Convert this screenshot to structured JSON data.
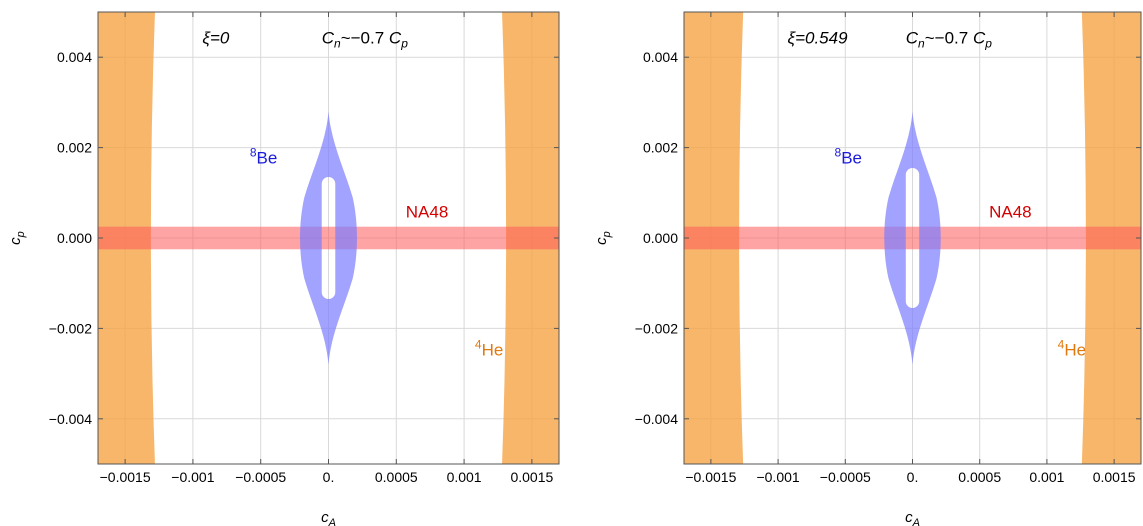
{
  "chart_data": [
    {
      "type": "region",
      "xlabel": "c",
      "xlabel_sub": "A",
      "ylabel": "c",
      "ylabel_sub": "p",
      "xlim": [
        -0.0017,
        0.0017
      ],
      "ylim": [
        -0.005,
        0.005
      ],
      "xticks": [
        {
          "v": -0.0015,
          "label": "−0.0015"
        },
        {
          "v": -0.001,
          "label": "−0.001"
        },
        {
          "v": -0.0005,
          "label": "−0.0005"
        },
        {
          "v": 0,
          "label": "0."
        },
        {
          "v": 0.0005,
          "label": "0.0005"
        },
        {
          "v": 0.001,
          "label": "0.001"
        },
        {
          "v": 0.0015,
          "label": "0.0015"
        }
      ],
      "yticks": [
        {
          "v": 0.004,
          "label": "0.004"
        },
        {
          "v": 0.002,
          "label": "0.002"
        },
        {
          "v": 0,
          "label": "0.000"
        },
        {
          "v": -0.002,
          "label": "−0.002"
        },
        {
          "v": -0.004,
          "label": "−0.004"
        }
      ],
      "grid": true,
      "title_xi": "ξ=0",
      "title_cn": "C",
      "title_cn_sub": "n",
      "title_rel": "~−0.7",
      "title_cp": "C",
      "title_cp_sub": "p",
      "regions": {
        "he4": {
          "label_sup": "4",
          "label": "He",
          "color": "#f5a445",
          "inner_edge_mid": 0.00132,
          "inner_edge_end": 0.00128
        },
        "na48": {
          "label": "NA48",
          "color": "#ff5a5a",
          "y_half": 0.00025
        },
        "be8": {
          "label_sup": "8",
          "label": "Be",
          "color": "#7b7bff",
          "outer_half_width": 0.00021,
          "y_extent": 0.0028,
          "inner_half_width": 5e-05,
          "inner_y_extent": 0.0014
        }
      },
      "colors": {
        "he4": "#f5a445",
        "na48": "#ff5a5a",
        "be8": "#7b7bff",
        "na48_label": "#d40000",
        "be8_label": "#1a1adc",
        "he4_label": "#e07a10"
      }
    },
    {
      "type": "region",
      "xlabel": "c",
      "xlabel_sub": "A",
      "ylabel": "c",
      "ylabel_sub": "p",
      "xlim": [
        -0.0017,
        0.0017
      ],
      "ylim": [
        -0.005,
        0.005
      ],
      "xticks": [
        {
          "v": -0.0015,
          "label": "−0.0015"
        },
        {
          "v": -0.001,
          "label": "−0.001"
        },
        {
          "v": -0.0005,
          "label": "−0.0005"
        },
        {
          "v": 0,
          "label": "0."
        },
        {
          "v": 0.0005,
          "label": "0.0005"
        },
        {
          "v": 0.001,
          "label": "0.001"
        },
        {
          "v": 0.0015,
          "label": "0.0015"
        }
      ],
      "yticks": [
        {
          "v": 0.004,
          "label": "0.004"
        },
        {
          "v": 0.002,
          "label": "0.002"
        },
        {
          "v": 0,
          "label": "0.000"
        },
        {
          "v": -0.002,
          "label": "−0.002"
        },
        {
          "v": -0.004,
          "label": "−0.004"
        }
      ],
      "grid": true,
      "title_xi": "ξ=0.549",
      "title_cn": "C",
      "title_cn_sub": "n",
      "title_rel": "~−0.7",
      "title_cp": "C",
      "title_cp_sub": "p",
      "regions": {
        "he4": {
          "label_sup": "4",
          "label": "He",
          "color": "#f5a445",
          "inner_edge_mid": 0.0013,
          "inner_edge_end": 0.00126
        },
        "na48": {
          "label": "NA48",
          "color": "#ff5a5a",
          "y_half": 0.00025
        },
        "be8": {
          "label_sup": "8",
          "label": "Be",
          "color": "#7b7bff",
          "outer_half_width": 0.00021,
          "y_extent": 0.0028,
          "inner_half_width": 5e-05,
          "inner_y_extent": 0.0016
        }
      },
      "colors": {
        "he4": "#f5a445",
        "na48": "#ff5a5a",
        "be8": "#7b7bff",
        "na48_label": "#d40000",
        "be8_label": "#1a1adc",
        "he4_label": "#e07a10"
      }
    }
  ]
}
